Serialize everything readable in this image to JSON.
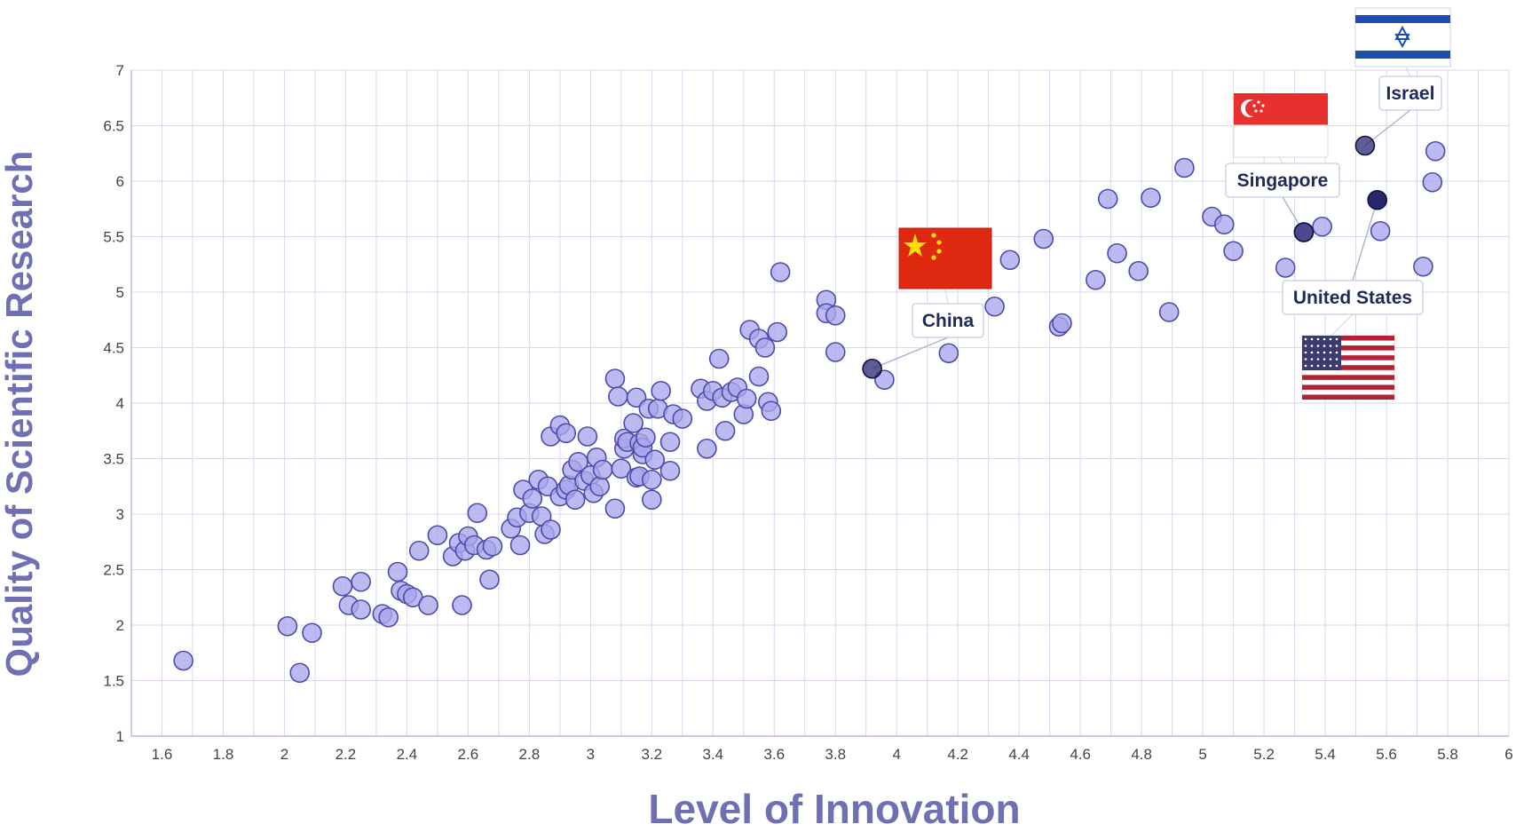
{
  "chart_data": {
    "type": "scatter",
    "xlabel": "Level of Innovation",
    "ylabel": "Quality of Scientific Research",
    "xlim": [
      1.5,
      6
    ],
    "ylim": [
      1,
      7
    ],
    "x_ticks": [
      "1.6",
      "1.8",
      "2",
      "2.2",
      "2.4",
      "2.6",
      "2.8",
      "3",
      "3.2",
      "3.4",
      "3.6",
      "3.8",
      "4",
      "4.2",
      "4.4",
      "4.6",
      "4.8",
      "5",
      "5.2",
      "5.4",
      "5.6",
      "5.8",
      "6"
    ],
    "y_ticks": [
      "1",
      "1.5",
      "2",
      "2.5",
      "3",
      "3.5",
      "4",
      "4.5",
      "5",
      "5.5",
      "6",
      "6.5",
      "7"
    ],
    "grid": true,
    "colors": {
      "point_fill": "#a9a6ec",
      "point_stroke": "#4d4ba8",
      "highlight": "#1b1a66",
      "grid": "#d7d7ee",
      "axis_title": "#6f6fb4"
    },
    "points": [
      [
        1.67,
        1.68
      ],
      [
        2.01,
        1.99
      ],
      [
        2.05,
        1.57
      ],
      [
        2.09,
        1.93
      ],
      [
        2.19,
        2.35
      ],
      [
        2.21,
        2.18
      ],
      [
        2.25,
        2.14
      ],
      [
        2.25,
        2.39
      ],
      [
        2.32,
        2.1
      ],
      [
        2.34,
        2.07
      ],
      [
        2.37,
        2.48
      ],
      [
        2.38,
        2.31
      ],
      [
        2.4,
        2.28
      ],
      [
        2.42,
        2.25
      ],
      [
        2.44,
        2.67
      ],
      [
        2.47,
        2.18
      ],
      [
        2.5,
        2.81
      ],
      [
        2.55,
        2.62
      ],
      [
        2.57,
        2.74
      ],
      [
        2.58,
        2.18
      ],
      [
        2.59,
        2.67
      ],
      [
        2.6,
        2.8
      ],
      [
        2.62,
        2.72
      ],
      [
        2.63,
        3.01
      ],
      [
        2.66,
        2.68
      ],
      [
        2.67,
        2.41
      ],
      [
        2.68,
        2.71
      ],
      [
        2.74,
        2.87
      ],
      [
        2.76,
        2.97
      ],
      [
        2.77,
        2.72
      ],
      [
        2.78,
        3.22
      ],
      [
        2.8,
        3.01
      ],
      [
        2.81,
        3.14
      ],
      [
        2.83,
        3.31
      ],
      [
        2.84,
        2.98
      ],
      [
        2.85,
        2.82
      ],
      [
        2.86,
        3.25
      ],
      [
        2.87,
        2.86
      ],
      [
        2.87,
        3.7
      ],
      [
        2.9,
        3.16
      ],
      [
        2.9,
        3.8
      ],
      [
        2.92,
        3.73
      ],
      [
        2.92,
        3.22
      ],
      [
        2.93,
        3.26
      ],
      [
        2.94,
        3.4
      ],
      [
        2.95,
        3.13
      ],
      [
        2.96,
        3.47
      ],
      [
        2.98,
        3.3
      ],
      [
        2.99,
        3.7
      ],
      [
        3.0,
        3.35
      ],
      [
        3.01,
        3.19
      ],
      [
        3.02,
        3.51
      ],
      [
        3.03,
        3.25
      ],
      [
        3.04,
        3.4
      ],
      [
        3.08,
        4.22
      ],
      [
        3.08,
        3.05
      ],
      [
        3.09,
        4.06
      ],
      [
        3.1,
        3.41
      ],
      [
        3.11,
        3.59
      ],
      [
        3.11,
        3.68
      ],
      [
        3.12,
        3.65
      ],
      [
        3.14,
        3.82
      ],
      [
        3.15,
        4.05
      ],
      [
        3.15,
        3.33
      ],
      [
        3.16,
        3.64
      ],
      [
        3.16,
        3.34
      ],
      [
        3.17,
        3.54
      ],
      [
        3.17,
        3.6
      ],
      [
        3.18,
        3.69
      ],
      [
        3.19,
        3.95
      ],
      [
        3.2,
        3.13
      ],
      [
        3.2,
        3.31
      ],
      [
        3.21,
        3.49
      ],
      [
        3.22,
        3.95
      ],
      [
        3.23,
        4.11
      ],
      [
        3.26,
        3.39
      ],
      [
        3.26,
        3.65
      ],
      [
        3.27,
        3.9
      ],
      [
        3.3,
        3.86
      ],
      [
        3.36,
        4.13
      ],
      [
        3.38,
        4.02
      ],
      [
        3.38,
        3.59
      ],
      [
        3.4,
        4.11
      ],
      [
        3.42,
        4.4
      ],
      [
        3.43,
        4.05
      ],
      [
        3.44,
        3.75
      ],
      [
        3.46,
        4.1
      ],
      [
        3.48,
        4.14
      ],
      [
        3.5,
        3.9
      ],
      [
        3.51,
        4.04
      ],
      [
        3.52,
        4.66
      ],
      [
        3.55,
        4.24
      ],
      [
        3.55,
        4.58
      ],
      [
        3.57,
        4.5
      ],
      [
        3.58,
        4.01
      ],
      [
        3.59,
        3.93
      ],
      [
        3.61,
        4.64
      ],
      [
        3.62,
        5.18
      ],
      [
        3.77,
        4.93
      ],
      [
        3.77,
        4.81
      ],
      [
        3.8,
        4.79
      ],
      [
        3.8,
        4.46
      ],
      [
        3.96,
        4.21
      ],
      [
        4.17,
        4.45
      ],
      [
        4.32,
        4.87
      ],
      [
        4.37,
        5.29
      ],
      [
        4.48,
        5.48
      ],
      [
        4.53,
        4.69
      ],
      [
        4.54,
        4.72
      ],
      [
        4.65,
        5.11
      ],
      [
        4.69,
        5.84
      ],
      [
        4.72,
        5.35
      ],
      [
        4.79,
        5.19
      ],
      [
        4.83,
        5.85
      ],
      [
        4.89,
        4.82
      ],
      [
        4.94,
        6.12
      ],
      [
        5.03,
        5.68
      ],
      [
        5.07,
        5.61
      ],
      [
        5.1,
        5.37
      ],
      [
        5.27,
        5.22
      ],
      [
        5.33,
        5.54
      ],
      [
        5.39,
        5.59
      ],
      [
        5.58,
        5.55
      ],
      [
        5.72,
        5.23
      ],
      [
        5.75,
        5.99
      ],
      [
        5.76,
        6.27
      ]
    ],
    "annotations": [
      {
        "label": "China",
        "x": 3.92,
        "y": 4.31,
        "flag": "china-flag"
      },
      {
        "label": "Israel",
        "x": 5.53,
        "y": 6.32,
        "flag": "israel-flag"
      },
      {
        "label": "Singapore",
        "x": 5.33,
        "y": 5.54,
        "flag": "singapore-flag"
      },
      {
        "label": "United States",
        "x": 5.57,
        "y": 5.83,
        "flag": "united-states-flag"
      }
    ]
  }
}
